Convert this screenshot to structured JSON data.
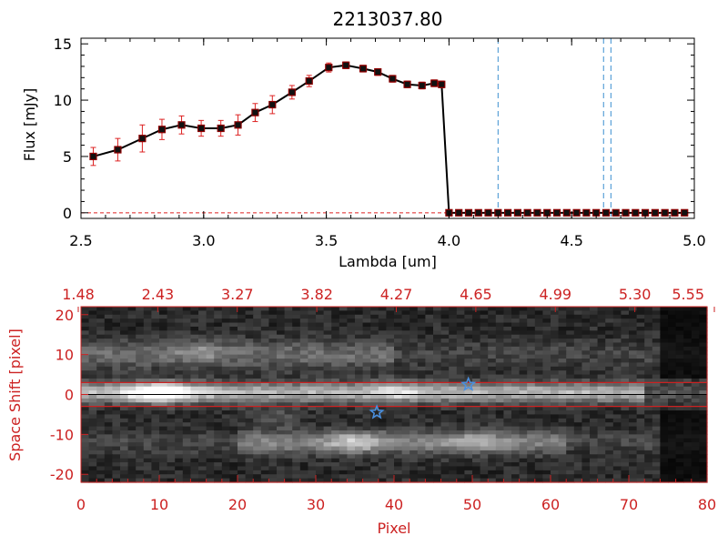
{
  "colors": {
    "axis_black": "#000000",
    "axis_red": "#cc2222",
    "marker": "#8b0000",
    "errorbar": "#dd2222",
    "vline": "#3a8fd0",
    "star": "#4a90e0",
    "slit_line": "#cc2222",
    "dashed_zero": "#dd2222"
  },
  "chart_data": [
    {
      "type": "line",
      "title": "2213037.80",
      "xlabel": "Lambda [um]",
      "ylabel": "Flux [mJy]",
      "xlim": [
        2.5,
        5.0
      ],
      "ylim": [
        -0.5,
        15.5
      ],
      "x_ticks": [
        "2.5",
        "3.0",
        "3.5",
        "4.0",
        "4.5",
        "5.0"
      ],
      "x_tick_values": [
        2.5,
        3.0,
        3.5,
        4.0,
        4.5,
        5.0
      ],
      "y_ticks": [
        "0",
        "5",
        "10",
        "15"
      ],
      "y_tick_values": [
        0,
        5,
        10,
        15
      ],
      "grid": false,
      "series": [
        {
          "x": [
            2.55,
            2.65,
            2.75,
            2.83,
            2.91,
            2.99,
            3.07,
            3.14,
            3.21,
            3.28,
            3.36,
            3.43,
            3.51,
            3.58,
            3.65,
            3.71,
            3.77,
            3.83,
            3.89,
            3.94,
            3.97,
            4.0,
            4.04,
            4.08,
            4.12,
            4.16,
            4.2,
            4.24,
            4.28,
            4.32,
            4.36,
            4.4,
            4.44,
            4.48,
            4.52,
            4.56,
            4.6,
            4.64,
            4.68,
            4.72,
            4.76,
            4.8,
            4.84,
            4.88,
            4.92,
            4.96
          ],
          "y": [
            5.0,
            5.6,
            6.6,
            7.4,
            7.8,
            7.5,
            7.5,
            7.8,
            8.9,
            9.6,
            10.7,
            11.7,
            12.9,
            13.1,
            12.8,
            12.5,
            11.9,
            11.4,
            11.3,
            11.5,
            11.4,
            0,
            0,
            0,
            0,
            0,
            0,
            0,
            0,
            0,
            0,
            0,
            0,
            0,
            0,
            0,
            0,
            0,
            0,
            0,
            0,
            0,
            0,
            0,
            0,
            0
          ],
          "yerr": [
            0.8,
            1.0,
            1.2,
            0.9,
            0.8,
            0.7,
            0.7,
            0.9,
            0.8,
            0.8,
            0.6,
            0.5,
            0.4,
            0.3,
            0.3,
            0.3,
            0.3,
            0.3,
            0.3,
            0.3,
            0.3,
            0,
            0,
            0,
            0,
            0,
            0,
            0,
            0,
            0,
            0,
            0,
            0,
            0,
            0,
            0,
            0,
            0,
            0,
            0,
            0,
            0,
            0,
            0,
            0,
            0
          ]
        }
      ],
      "vertical_lines": [
        4.2,
        4.63,
        4.66
      ],
      "reference_line_y": 0
    },
    {
      "type": "heatmap",
      "xlabel": "Pixel",
      "ylabel": "Space Shift [pixel]",
      "xlim": [
        0,
        80
      ],
      "ylim": [
        -22,
        22
      ],
      "x_ticks": [
        "0",
        "10",
        "20",
        "30",
        "40",
        "50",
        "60",
        "70",
        "80"
      ],
      "x_tick_values": [
        0,
        10,
        20,
        30,
        40,
        50,
        60,
        70,
        80
      ],
      "y_ticks": [
        "20",
        "10",
        "0",
        "-10",
        "-20"
      ],
      "y_tick_values": [
        20,
        10,
        0,
        -10,
        -20
      ],
      "top_axis_ticks": [
        "1.48",
        "2.43",
        "3.27",
        "3.82",
        "4.27",
        "4.65",
        "4.99",
        "5.30",
        "5.55"
      ],
      "colormap": "grayscale",
      "slit_lines_y": [
        3,
        -3
      ],
      "markers": [
        {
          "shape": "star",
          "x": 49.5,
          "y": 2.5
        },
        {
          "shape": "star",
          "x": 37.8,
          "y": -4.5
        }
      ],
      "features": [
        {
          "x": 10,
          "y": 0.5,
          "value": 1.0
        },
        {
          "x": 35,
          "y": -12,
          "value": 0.95
        },
        {
          "x": 50,
          "y": -12,
          "value": 0.65
        },
        {
          "x": 40,
          "y": 1,
          "value": 0.7
        },
        {
          "x": 15,
          "y": 11,
          "value": 0.55
        },
        {
          "x": 25,
          "y": -6,
          "value": 0.45
        }
      ]
    }
  ]
}
